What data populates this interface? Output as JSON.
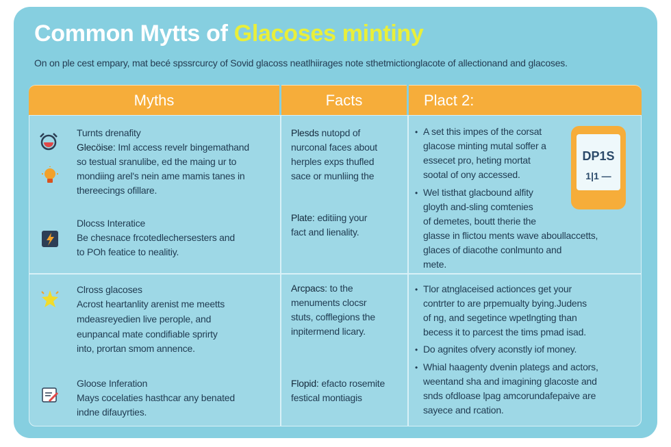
{
  "title": {
    "part1": "Common Mytts of ",
    "part2": "Glacoses mintiny"
  },
  "subtitle": "On on ple cest empary, mat becé spssrcurcy of Sovid glacoss neatlhiirages note sthetmictionglacote of allectionand and glacoses.",
  "headers": {
    "col1": "Myths",
    "col2": "Facts",
    "col3": "Plact 2:"
  },
  "colors": {
    "card": "#86cfe0",
    "header": "#f6ad3a",
    "title_highlight": "#e9ef3a",
    "cell": "#9ed8e6"
  },
  "myths": {
    "item1": {
      "icon": "alarm-clock-icon",
      "heading": "Turnts drenafity",
      "label": "Glecöise:",
      "line1": "Iml access revelr bingemathand",
      "line2": "so testual sranulibe, ed the maing ur to",
      "line3": "mondiing arel's nein ame mamis tanes in",
      "line4": "thereecings ofillare."
    },
    "item1_extra_icon": "lightbulb-icon",
    "item2": {
      "icon": "lightning-chip-icon",
      "heading": "Dlocss Interatice",
      "line1": "Be chesnace frcotedlechersesters and",
      "line2": "to POh featice to nealitiy."
    },
    "item3": {
      "icon": "sparkle-bolt-icon",
      "heading": "Clross glacoses",
      "line1": "Acrost heartanlity arenist me meetts",
      "line2": "mdeasreyedien live perople, and",
      "line3": "eunpancal mate condifiable sprirty",
      "line4": "into, prortan smom annence."
    },
    "item4": {
      "icon": "document-pen-icon",
      "heading": "Gloose Inferation",
      "line1": "Mays cocelaties hasthcar any benated",
      "line2": "indne difauyrties."
    }
  },
  "facts": {
    "r1a": {
      "label": "Plesds",
      "line1": "nutopd of",
      "line2": "nurconal faces about",
      "line3": "herples exps thufled",
      "line4": "sace or munliing the"
    },
    "r1b": {
      "label": "Plate:",
      "line1": "editiing your",
      "line2": "fact and lienality."
    },
    "r2a": {
      "label": "Arcpacs:",
      "line1": "to the",
      "line2": "menuments clocsr",
      "line3": "stuts, cofflegions the",
      "line4": "inpitermend licary."
    },
    "r2b": {
      "label": "Flopid:",
      "line1": "efacto rosemite",
      "line2": "festical montiagis"
    }
  },
  "plact": {
    "r1a": {
      "line1": "A set this impes of the corsat",
      "line2": "glacose minting mutal soffer a",
      "line3": "essecet pro, heting mortat",
      "line4": "sootal of ony accessed."
    },
    "r1b": {
      "line1": "Wel tisthat glacbound alfity",
      "line2": "gloyth and-sling comtenies",
      "line3": "of demetes, boutt therie the",
      "line4": "glasse in flictou ments wave aboullaccetts,",
      "line5": "glaces of diacothe conlmunto and",
      "line6": "mete."
    },
    "r2a": {
      "line1": "Tlor atnglaceised actionces get your",
      "line2": "contrter to are prpemualty bying.Judens",
      "line3": "of ng, and segetince wpetlngting than",
      "line4": "becess it to parcest the tims pmad isad."
    },
    "r2b": {
      "line1": "Do agnites ofvery aconstly iof money."
    },
    "r2c": {
      "line1": "Whial haagenty dvenin plategs and actors,",
      "line2": "weentand sha and imagining glacoste and",
      "line3": "snds ofdloase lpag amcorundafepaive are",
      "line4": "sayece and rcation."
    },
    "phone": {
      "icon": "phone-meter-icon",
      "screen_line1": "DP1S",
      "screen_line2": "1|1 —"
    }
  }
}
